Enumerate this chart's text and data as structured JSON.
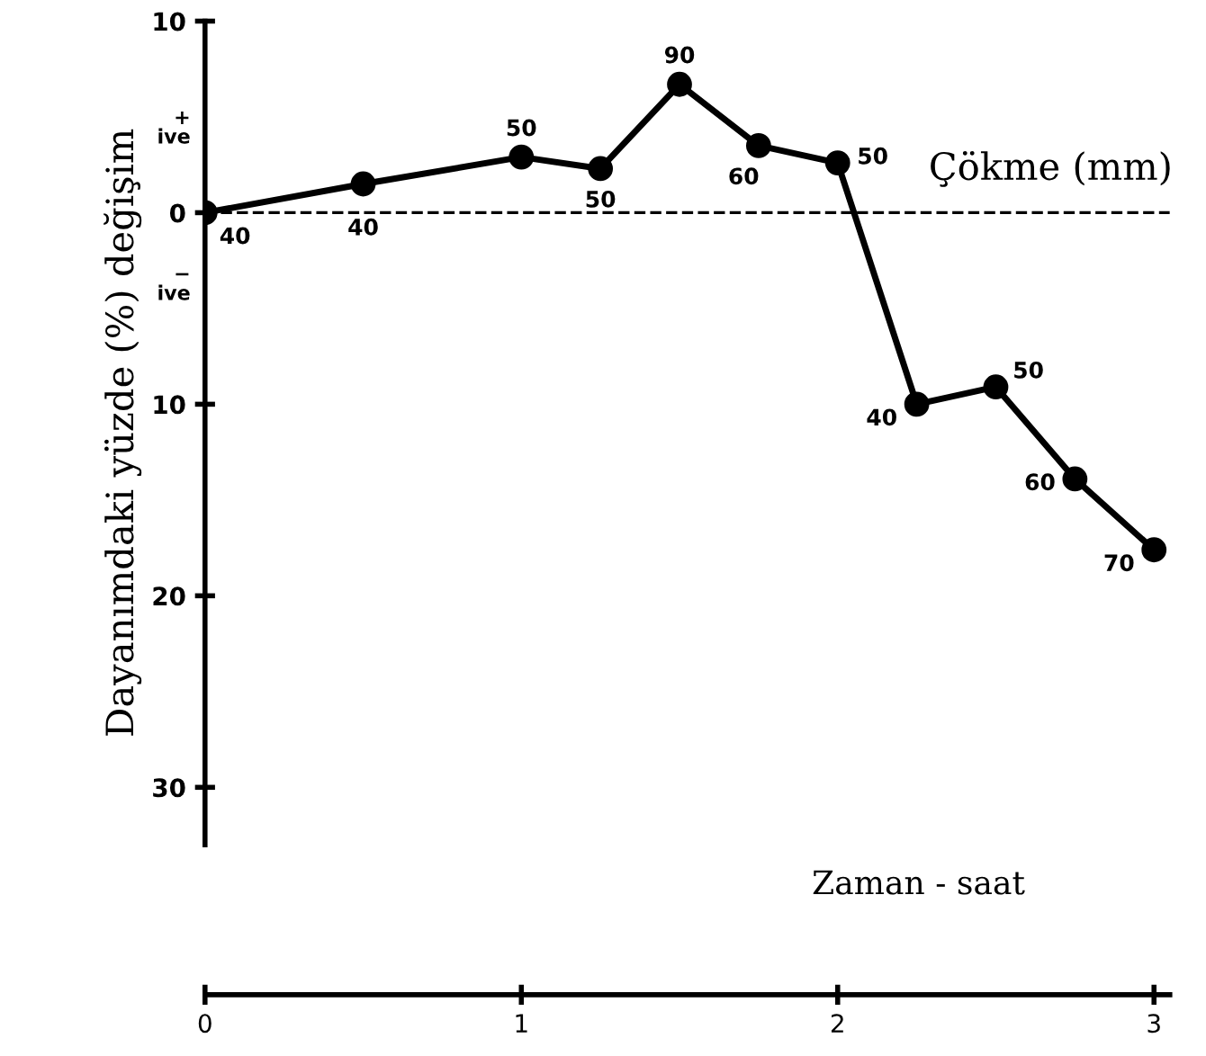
{
  "chart_data": {
    "type": "line",
    "x": [
      0,
      0.5,
      1,
      1.25,
      1.5,
      1.75,
      2,
      2.25,
      2.5,
      2.75,
      3
    ],
    "series": [
      {
        "color": "#000000",
        "values": [
          0,
          1.5,
          2.9,
          2.3,
          6.7,
          3.5,
          2.6,
          -10,
          -9.1,
          -13.9,
          -17.6
        ]
      }
    ],
    "marker": "circle",
    "xlabel": "Zaman - saat",
    "ylabel": "Dayanımdaki yüzde (%) değişim",
    "xlim": [
      0,
      3.05
    ],
    "xticks": [
      0,
      1,
      2,
      3
    ],
    "ylim": [
      -33,
      10
    ],
    "yticks": [
      {
        "value": 10,
        "label": "10"
      },
      0,
      {
        "value": -10,
        "label": "10"
      },
      {
        "value": -20,
        "label": "20"
      },
      {
        "value": -30,
        "label": "30"
      }
    ],
    "ref_lines": [
      {
        "axis": "y",
        "value": 0,
        "label": null,
        "color": "#000000",
        "line_style": "dashed"
      }
    ],
    "annotations": [
      "Çökme (mm)",
      "+\nive",
      "−\nive",
      {
        "text": "40",
        "x": 0,
        "y": 0
      },
      {
        "text": "40",
        "x": 0.5,
        "y": 1.5
      },
      {
        "text": "50",
        "x": 1,
        "y": 2.9
      },
      {
        "text": "50",
        "x": 1.25,
        "y": 2.3
      },
      {
        "text": "90",
        "x": 1.5,
        "y": 6.7
      },
      {
        "text": "60",
        "x": 1.75,
        "y": 3.5
      },
      {
        "text": "50",
        "x": 2,
        "y": 2.6
      },
      {
        "text": "40",
        "x": 2.25,
        "y": -10
      },
      {
        "text": "50",
        "x": 2.5,
        "y": -9.1
      },
      {
        "text": "60",
        "x": 2.75,
        "y": -13.9
      },
      {
        "text": "70",
        "x": 3,
        "y": -17.6
      }
    ],
    "grid": false,
    "legend": false
  }
}
